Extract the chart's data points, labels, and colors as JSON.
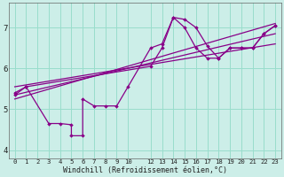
{
  "bg_color": "#cceee8",
  "grid_color": "#99ddcc",
  "line_color": "#880088",
  "xlabel": "Windchill (Refroidissement éolien,°C)",
  "xlim": [
    -0.5,
    23.5
  ],
  "ylim": [
    3.8,
    7.6
  ],
  "xticks": [
    0,
    1,
    2,
    3,
    4,
    5,
    6,
    7,
    8,
    9,
    10,
    12,
    13,
    14,
    15,
    16,
    17,
    18,
    19,
    20,
    21,
    22,
    23
  ],
  "yticks": [
    4,
    5,
    6,
    7
  ],
  "figsize": [
    3.2,
    2.0
  ],
  "dpi": 100,
  "curve_zigzag_x": [
    0,
    1,
    3,
    4,
    5,
    5,
    6,
    6,
    7,
    8,
    9,
    10,
    12,
    13,
    14,
    15,
    16,
    17,
    18,
    19,
    20,
    21,
    22,
    23
  ],
  "curve_zigzag_y": [
    5.4,
    5.55,
    4.65,
    4.65,
    4.62,
    4.35,
    4.35,
    5.25,
    5.08,
    5.08,
    5.08,
    5.55,
    6.5,
    6.6,
    7.25,
    7.2,
    7.0,
    6.55,
    6.25,
    6.5,
    6.5,
    6.5,
    6.85,
    7.05
  ],
  "curve_smooth_x": [
    0,
    1,
    12,
    13,
    14,
    15,
    16,
    17,
    18,
    19,
    20,
    21,
    22,
    23
  ],
  "curve_smooth_y": [
    5.35,
    5.55,
    6.05,
    6.5,
    7.25,
    7.0,
    6.5,
    6.25,
    6.25,
    6.5,
    6.5,
    6.5,
    6.85,
    7.05
  ],
  "reg_lines": [
    {
      "x": [
        0,
        23
      ],
      "y": [
        5.55,
        6.6
      ]
    },
    {
      "x": [
        0,
        23
      ],
      "y": [
        5.35,
        6.85
      ]
    },
    {
      "x": [
        0,
        23
      ],
      "y": [
        5.25,
        7.1
      ]
    }
  ]
}
